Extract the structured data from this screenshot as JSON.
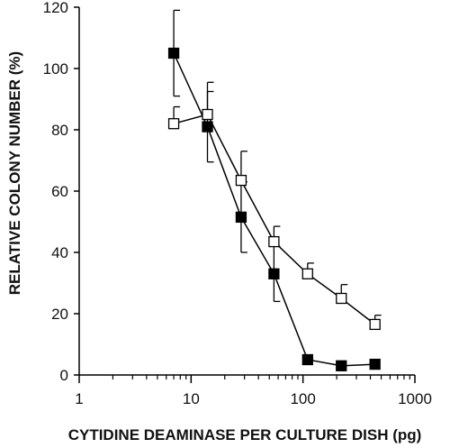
{
  "chart_data": {
    "type": "line",
    "title": "",
    "xlabel": "CYTIDINE DEAMINASE PER CULTURE DISH (pg)",
    "ylabel": "RELATIVE COLONY NUMBER (%)",
    "x_scale": "log",
    "xlim": [
      1,
      1000
    ],
    "ylim": [
      0,
      120
    ],
    "x_ticks": [
      "1",
      "10",
      "100",
      "1000"
    ],
    "y_ticks": [
      "0",
      "20",
      "40",
      "60",
      "80",
      "100",
      "120"
    ],
    "grid": false,
    "legend": "none",
    "series": [
      {
        "marker": "filled-square",
        "color": "#000000",
        "x": [
          7,
          14,
          28,
          55,
          110,
          220,
          440
        ],
        "y": [
          105,
          81,
          51.5,
          33,
          5,
          3,
          3.5
        ],
        "error": [
          14,
          11.5,
          11.5,
          9,
          0,
          0,
          0
        ]
      },
      {
        "marker": "open-square",
        "color": "#000000",
        "x": [
          7,
          14,
          28,
          55,
          110,
          220,
          440
        ],
        "y": [
          82,
          85,
          63.5,
          43.5,
          33,
          25,
          16.5
        ],
        "error": [
          5.5,
          10.5,
          9.5,
          5,
          3.5,
          4.5,
          3
        ]
      }
    ]
  }
}
